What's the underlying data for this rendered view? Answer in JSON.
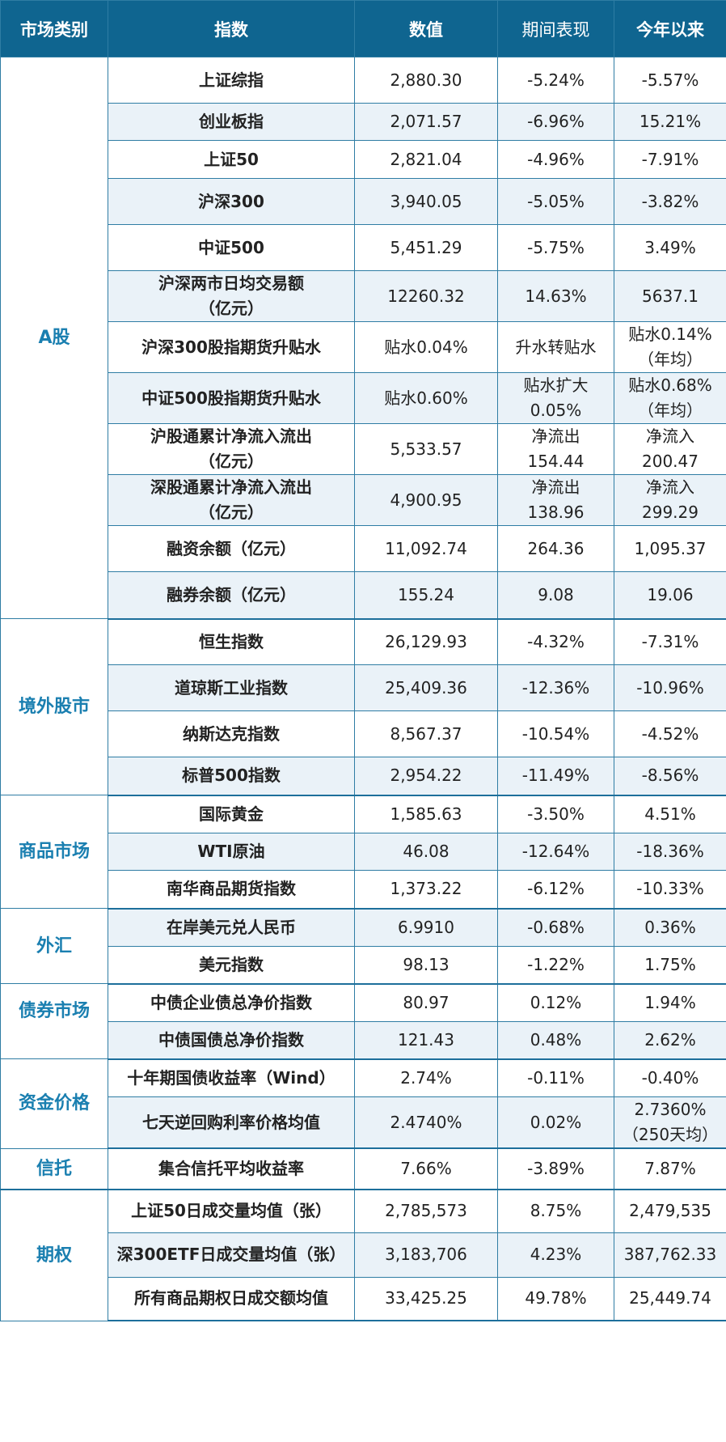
{
  "header": {
    "category": "市场类别",
    "index": "指数",
    "value": "数值",
    "period": "期间表现",
    "ytd": "今年以来"
  },
  "categories": [
    {
      "name": "A股",
      "rows": [
        {
          "index": "上证综指",
          "value": "2,880.30",
          "period": "-5.24%",
          "ytd": "-5.57%"
        },
        {
          "index": "创业板指",
          "value": "2,071.57",
          "period": "-6.96%",
          "ytd": "15.21%"
        },
        {
          "index": "上证50",
          "value": "2,821.04",
          "period": "-4.96%",
          "ytd": "-7.91%"
        },
        {
          "index": "沪深300",
          "value": "3,940.05",
          "period": "-5.05%",
          "ytd": "-3.82%"
        },
        {
          "index": "中证500",
          "value": "5,451.29",
          "period": "-5.75%",
          "ytd": "3.49%"
        },
        {
          "index": "沪深两市日均交易额\n（亿元）",
          "value": "12260.32",
          "period": "14.63%",
          "ytd": "5637.1"
        },
        {
          "index": "沪深300股指期货升贴水",
          "value": "贴水0.04%",
          "period": "升水转贴水",
          "ytd": "贴水0.14%\n（年均）"
        },
        {
          "index": "中证500股指期货升贴水",
          "value": "贴水0.60%",
          "period": "贴水扩大\n0.05%",
          "ytd": "贴水0.68%\n（年均）"
        },
        {
          "index": "沪股通累计净流入流出\n（亿元）",
          "value": "5,533.57",
          "period": "净流出\n154.44",
          "ytd": "净流入\n200.47"
        },
        {
          "index": "深股通累计净流入流出\n（亿元）",
          "value": "4,900.95",
          "period": "净流出\n138.96",
          "ytd": "净流入\n299.29"
        },
        {
          "index": "融资余额（亿元）",
          "value": "11,092.74",
          "period": "264.36",
          "ytd": "1,095.37"
        },
        {
          "index": "融券余额（亿元）",
          "value": "155.24",
          "period": "9.08",
          "ytd": "19.06"
        }
      ]
    },
    {
      "name": "境外股市",
      "rows": [
        {
          "index": "恒生指数",
          "value": "26,129.93",
          "period": "-4.32%",
          "ytd": "-7.31%"
        },
        {
          "index": "道琼斯工业指数",
          "value": "25,409.36",
          "period": "-12.36%",
          "ytd": "-10.96%"
        },
        {
          "index": "纳斯达克指数",
          "value": "8,567.37",
          "period": "-10.54%",
          "ytd": "-4.52%"
        },
        {
          "index": "标普500指数",
          "value": "2,954.22",
          "period": "-11.49%",
          "ytd": "-8.56%"
        }
      ]
    },
    {
      "name": "商品市场",
      "rows": [
        {
          "index": "国际黄金",
          "value": "1,585.63",
          "period": "-3.50%",
          "ytd": "4.51%"
        },
        {
          "index": "WTI原油",
          "value": "46.08",
          "period": "-12.64%",
          "ytd": "-18.36%"
        },
        {
          "index": "南华商品期货指数",
          "value": "1,373.22",
          "period": "-6.12%",
          "ytd": "-10.33%"
        }
      ]
    },
    {
      "name": "外汇",
      "rows": [
        {
          "index": "在岸美元兑人民币",
          "value": "6.9910",
          "period": "-0.68%",
          "ytd": "0.36%"
        },
        {
          "index": "美元指数",
          "value": "98.13",
          "period": "-1.22%",
          "ytd": "1.75%"
        }
      ]
    },
    {
      "name": "债券市场",
      "rows": [
        {
          "index": "中债企业债总净价指数",
          "value": "80.97",
          "period": "0.12%",
          "ytd": "1.94%"
        },
        {
          "index": "中债国债总净价指数",
          "value": "121.43",
          "period": "0.48%",
          "ytd": "2.62%"
        }
      ]
    },
    {
      "name": "资金价格",
      "rows": [
        {
          "index": "十年期国债收益率（Wind）",
          "value": "2.74%",
          "period": "-0.11%",
          "ytd": "-0.40%"
        },
        {
          "index": "七天逆回购利率价格均值",
          "value": "2.4740%",
          "period": "0.02%",
          "ytd": "2.7360%\n（250天均）"
        }
      ]
    },
    {
      "name": "信托",
      "rows": [
        {
          "index": "集合信托平均收益率",
          "value": "7.66%",
          "period": "-3.89%",
          "ytd": "7.87%"
        }
      ]
    },
    {
      "name": "期权",
      "rows": [
        {
          "index": "上证50日成交量均值（张）",
          "value": "2,785,573",
          "period": "8.75%",
          "ytd": "2,479,535"
        },
        {
          "index": "深300ETF日成交量均值（张）",
          "value": "3,183,706",
          "period": "4.23%",
          "ytd": "387,762.33"
        },
        {
          "index": "所有商品期权日成交额均值",
          "value": "33,425.25",
          "period": "49.78%",
          "ytd": "25,449.74"
        }
      ]
    }
  ]
}
